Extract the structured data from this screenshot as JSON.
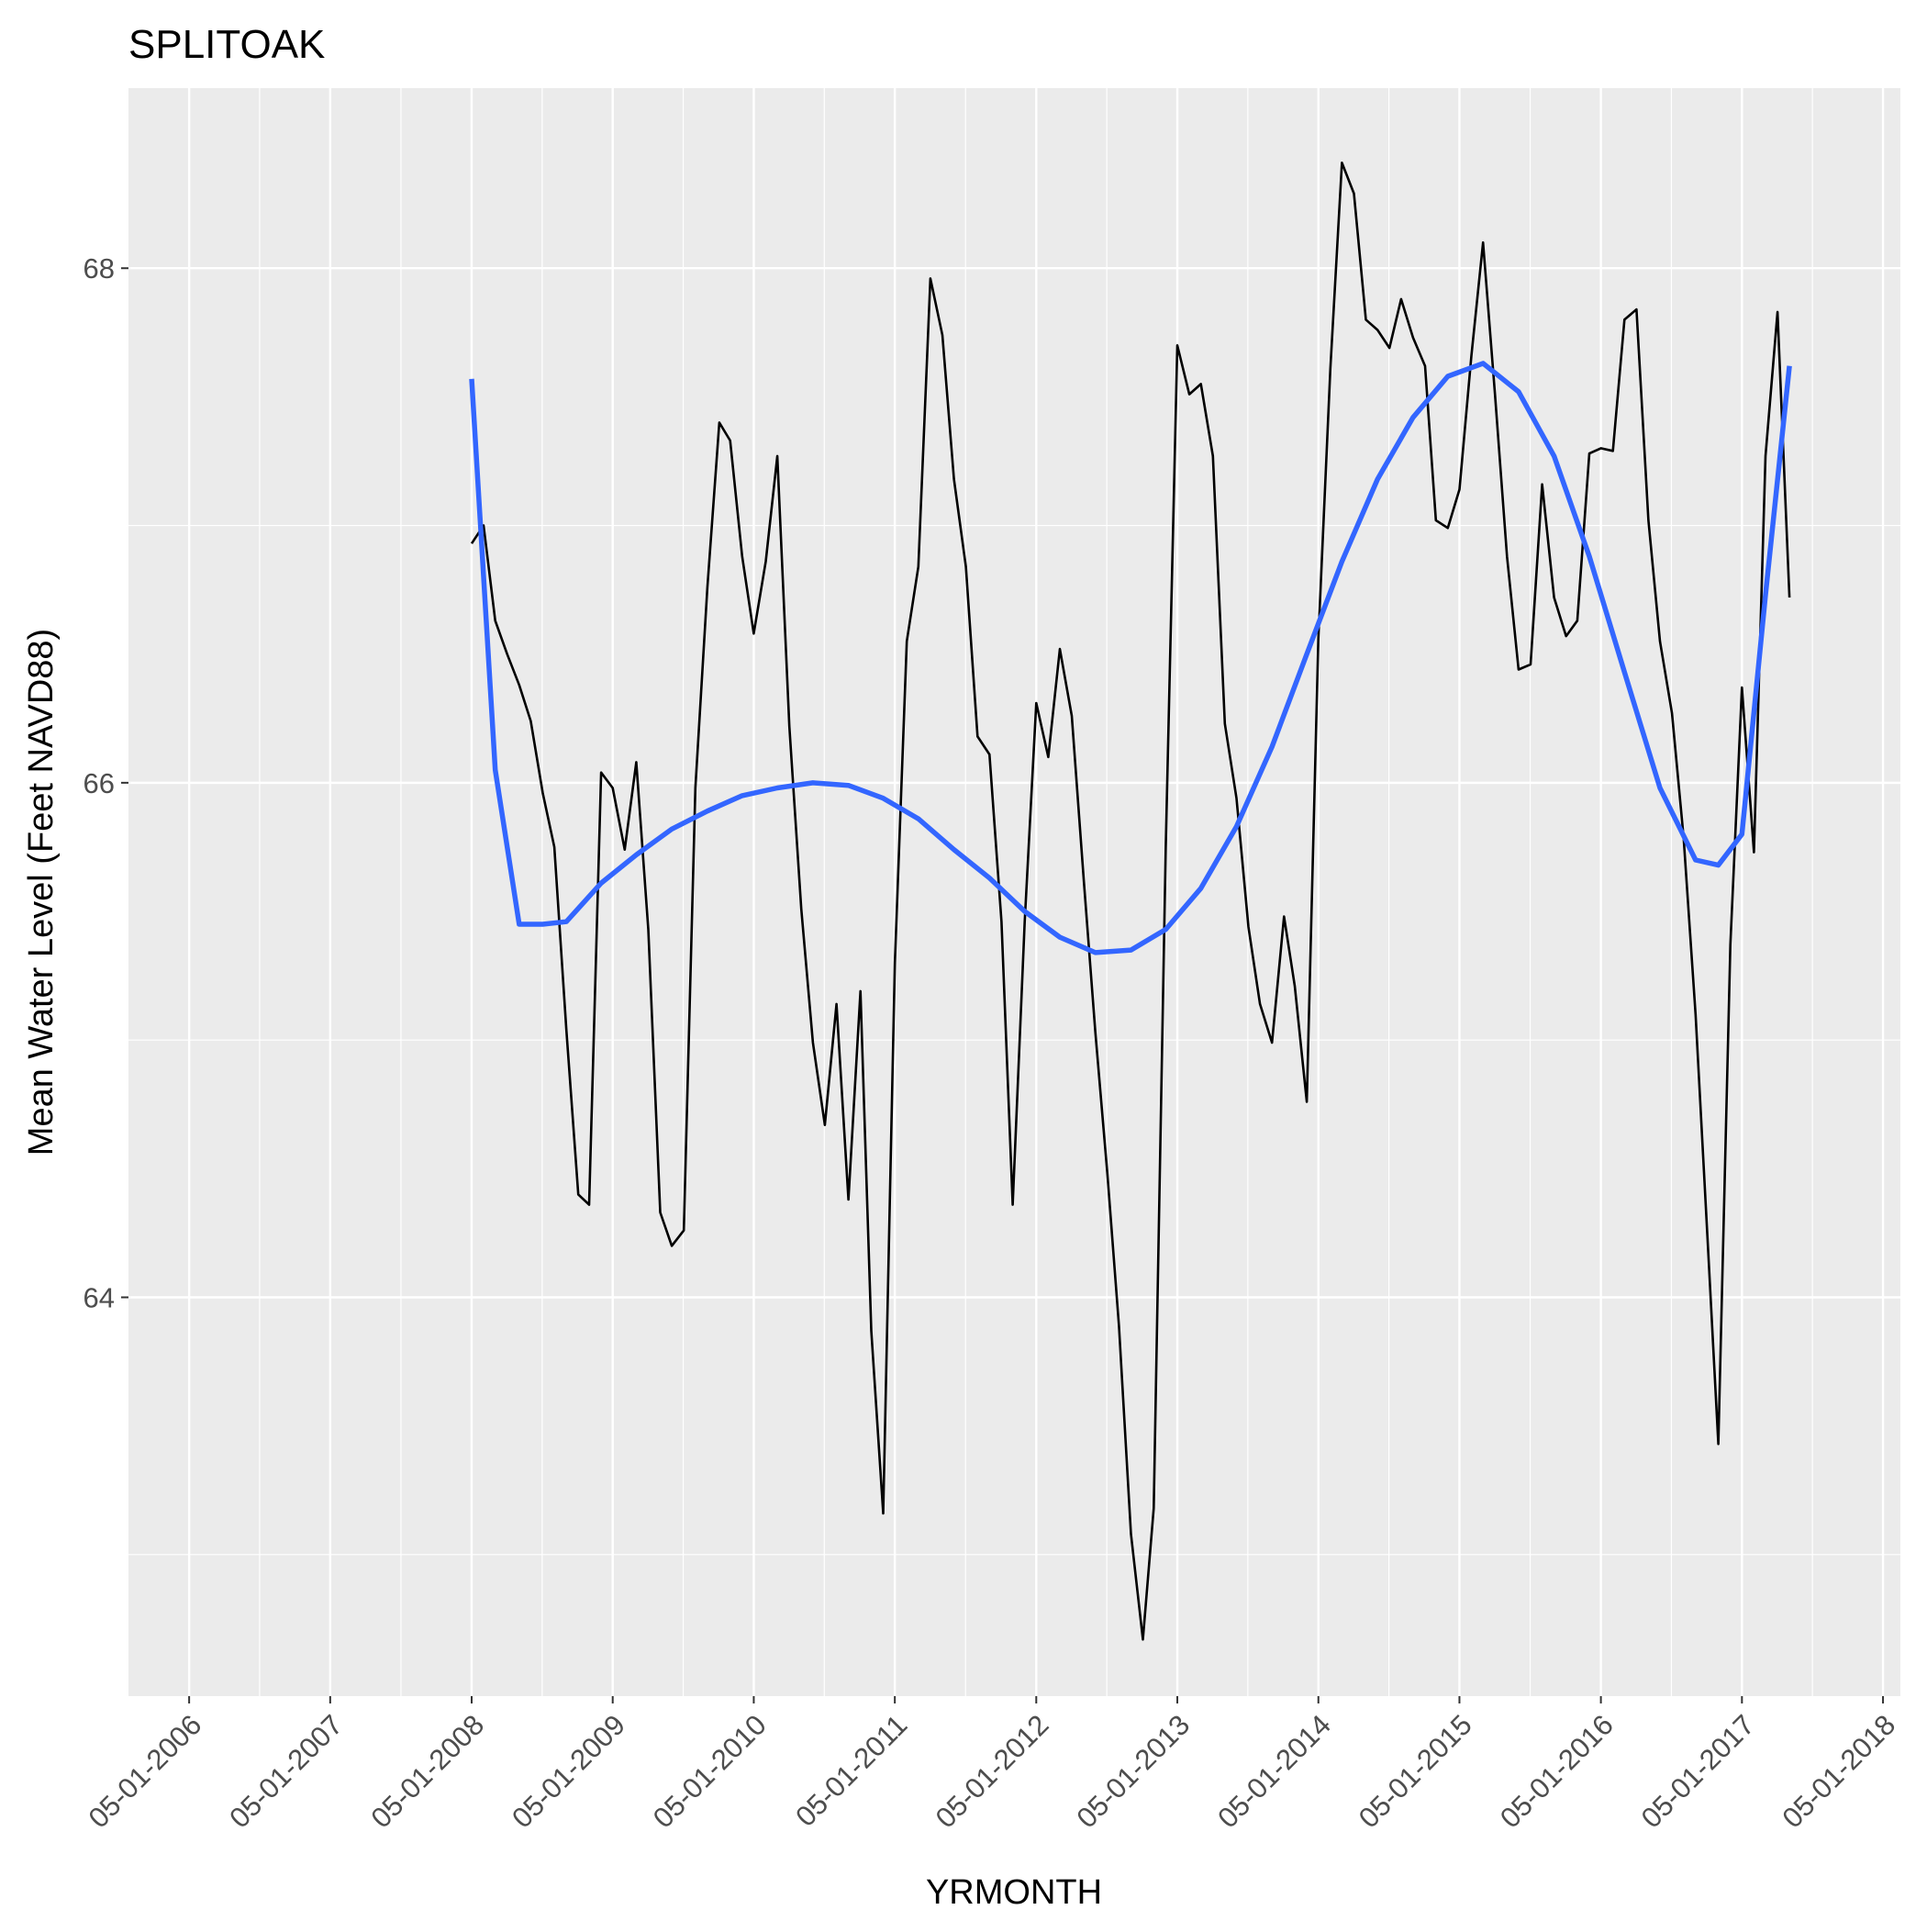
{
  "chart_data": {
    "type": "line",
    "title": "SPLITOAK",
    "xlabel": "YRMONTH",
    "ylabel": "Mean Water Level (Feet NAVD88)",
    "x_tick_labels": [
      "05-01-2006",
      "05-01-2007",
      "05-01-2008",
      "05-01-2009",
      "05-01-2010",
      "05-01-2011",
      "05-01-2012",
      "05-01-2013",
      "05-01-2014",
      "05-01-2015",
      "05-01-2016",
      "05-01-2017",
      "05-01-2018"
    ],
    "y_tick_labels": [
      "64",
      "66",
      "68"
    ],
    "xlim": [
      "2005-11-25",
      "2018-06-15"
    ],
    "ylim": [
      62.45,
      68.7
    ],
    "grid": true,
    "legend": "none",
    "colors": {
      "panel_background": "#ebebeb",
      "grid": "#ffffff",
      "observed_line": "#000000",
      "smooth_line": "#3366ff"
    },
    "series": [
      {
        "x": [
          "2008-05-01",
          "2008-06-01",
          "2008-07-01",
          "2008-08-01",
          "2008-09-01",
          "2008-10-01",
          "2008-11-01",
          "2008-12-01",
          "2009-01-01",
          "2009-02-01",
          "2009-03-01",
          "2009-04-01",
          "2009-05-01",
          "2009-06-01",
          "2009-07-01",
          "2009-08-01",
          "2009-09-01",
          "2009-10-01",
          "2009-11-01",
          "2009-12-01",
          "2010-01-01",
          "2010-02-01",
          "2010-03-01",
          "2010-04-01",
          "2010-05-01",
          "2010-06-01",
          "2010-07-01",
          "2010-08-01",
          "2010-09-01",
          "2010-10-01",
          "2010-11-01",
          "2010-12-01",
          "2011-01-01",
          "2011-02-01",
          "2011-03-01",
          "2011-04-01",
          "2011-05-01",
          "2011-06-01",
          "2011-07-01",
          "2011-08-01",
          "2011-09-01",
          "2011-10-01",
          "2011-11-01",
          "2011-12-01",
          "2012-01-01",
          "2012-02-01",
          "2012-03-01",
          "2012-04-01",
          "2012-05-01",
          "2012-06-01",
          "2012-07-01",
          "2012-08-01",
          "2012-09-01",
          "2012-10-01",
          "2012-11-01",
          "2012-12-01",
          "2013-01-01",
          "2013-02-01",
          "2013-03-01",
          "2013-04-01",
          "2013-05-01",
          "2013-06-01",
          "2013-07-01",
          "2013-08-01",
          "2013-09-01",
          "2013-10-01",
          "2013-11-01",
          "2013-12-01",
          "2014-01-01",
          "2014-02-01",
          "2014-03-01",
          "2014-04-01",
          "2014-05-01",
          "2014-06-01",
          "2014-07-01",
          "2014-08-01",
          "2014-09-01",
          "2014-10-01",
          "2014-11-01",
          "2014-12-01",
          "2015-01-01",
          "2015-02-01",
          "2015-03-01",
          "2015-04-01",
          "2015-05-01",
          "2015-06-01",
          "2015-07-01",
          "2015-08-01",
          "2015-09-01",
          "2015-10-01",
          "2015-11-01",
          "2015-12-01",
          "2016-01-01",
          "2016-02-01",
          "2016-03-01",
          "2016-04-01",
          "2016-05-01",
          "2016-06-01",
          "2016-07-01",
          "2016-08-01",
          "2016-09-01",
          "2016-10-01",
          "2016-11-01",
          "2016-12-01",
          "2017-01-01",
          "2017-02-01",
          "2017-03-01",
          "2017-04-01",
          "2017-05-01",
          "2017-06-01",
          "2017-07-01",
          "2017-08-01",
          "2017-09-01"
        ],
        "values": [
          66.93,
          67.0,
          66.63,
          66.5,
          66.38,
          66.24,
          65.96,
          65.75,
          65.04,
          64.4,
          64.36,
          66.04,
          65.98,
          65.74,
          66.08,
          65.43,
          64.33,
          64.2,
          64.26,
          65.98,
          66.76,
          67.4,
          67.33,
          66.88,
          66.58,
          66.86,
          67.27,
          66.22,
          65.51,
          64.99,
          64.67,
          65.14,
          64.38,
          65.19,
          63.87,
          63.16,
          65.3,
          66.55,
          66.84,
          67.96,
          67.74,
          67.18,
          66.84,
          66.18,
          66.11,
          65.46,
          64.36,
          65.46,
          66.31,
          66.1,
          66.52,
          66.26,
          65.62,
          65.03,
          64.48,
          63.89,
          63.08,
          62.67,
          63.18,
          65.75,
          67.7,
          67.51,
          67.55,
          67.27,
          66.23,
          65.94,
          65.44,
          65.14,
          64.99,
          65.48,
          65.21,
          64.76,
          66.56,
          67.61,
          68.41,
          68.29,
          67.8,
          67.76,
          67.69,
          67.88,
          67.73,
          67.62,
          67.02,
          66.99,
          67.14,
          67.66,
          68.1,
          67.51,
          66.88,
          66.44,
          66.46,
          67.16,
          66.72,
          66.57,
          66.63,
          67.28,
          67.3,
          67.29,
          67.8,
          67.84,
          67.02,
          66.55,
          66.27,
          65.79,
          65.1,
          64.23,
          63.43,
          65.37,
          66.37,
          65.73,
          67.27,
          67.83,
          66.72
        ]
      },
      {
        "x": [
          "2008-05-01",
          "2008-07-01",
          "2008-09-01",
          "2008-11-01",
          "2009-01-01",
          "2009-04-01",
          "2009-07-01",
          "2009-10-01",
          "2010-01-01",
          "2010-04-01",
          "2010-07-01",
          "2010-10-01",
          "2011-01-01",
          "2011-04-01",
          "2011-07-01",
          "2011-10-01",
          "2012-01-01",
          "2012-04-01",
          "2012-07-01",
          "2012-10-01",
          "2013-01-01",
          "2013-04-01",
          "2013-07-01",
          "2013-10-01",
          "2014-01-01",
          "2014-04-01",
          "2014-07-01",
          "2014-10-01",
          "2015-01-01",
          "2015-04-01",
          "2015-07-01",
          "2015-10-01",
          "2016-01-01",
          "2016-04-01",
          "2016-07-01",
          "2016-10-01",
          "2017-01-01",
          "2017-03-01",
          "2017-05-01",
          "2017-07-01",
          "2017-09-01"
        ],
        "values": [
          67.57,
          66.05,
          65.45,
          65.45,
          65.46,
          65.61,
          65.72,
          65.82,
          65.89,
          65.95,
          65.98,
          66.0,
          65.99,
          65.94,
          65.86,
          65.74,
          65.63,
          65.5,
          65.4,
          65.34,
          65.35,
          65.43,
          65.59,
          65.83,
          66.14,
          66.5,
          66.86,
          67.18,
          67.42,
          67.58,
          67.63,
          67.52,
          67.27,
          66.88,
          66.43,
          65.98,
          65.7,
          65.68,
          65.8,
          66.73,
          67.62
        ]
      }
    ]
  }
}
